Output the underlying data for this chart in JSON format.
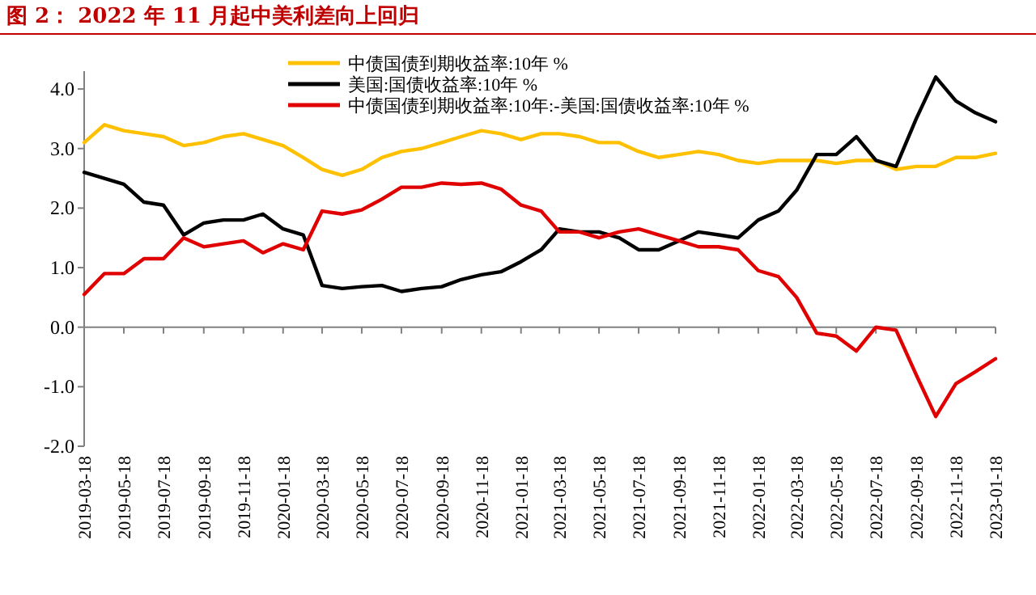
{
  "chart_data": {
    "type": "line",
    "title": "图 2：  2022 年 11 月起中美利差向上回归",
    "x": [
      "2019-03-18",
      "2019-04-18",
      "2019-05-18",
      "2019-06-18",
      "2019-07-18",
      "2019-08-18",
      "2019-09-18",
      "2019-10-18",
      "2019-11-18",
      "2019-12-18",
      "2020-01-18",
      "2020-02-18",
      "2020-03-18",
      "2020-04-18",
      "2020-05-18",
      "2020-06-18",
      "2020-07-18",
      "2020-08-18",
      "2020-09-18",
      "2020-10-18",
      "2020-11-18",
      "2020-12-18",
      "2021-01-18",
      "2021-02-18",
      "2021-03-18",
      "2021-04-18",
      "2021-05-18",
      "2021-06-18",
      "2021-07-18",
      "2021-08-18",
      "2021-09-18",
      "2021-10-18",
      "2021-11-18",
      "2021-12-18",
      "2022-01-18",
      "2022-02-18",
      "2022-03-18",
      "2022-04-18",
      "2022-05-18",
      "2022-06-18",
      "2022-07-18",
      "2022-08-18",
      "2022-09-18",
      "2022-10-18",
      "2022-11-18",
      "2022-12-18",
      "2023-01-18"
    ],
    "series": [
      {
        "name": "中债国债到期收益率:10年 %",
        "color": "#ffc000",
        "values": [
          3.1,
          3.4,
          3.3,
          3.25,
          3.2,
          3.05,
          3.1,
          3.2,
          3.25,
          3.15,
          3.05,
          2.85,
          2.65,
          2.55,
          2.65,
          2.85,
          2.95,
          3.0,
          3.1,
          3.2,
          3.3,
          3.25,
          3.15,
          3.25,
          3.25,
          3.2,
          3.1,
          3.1,
          2.95,
          2.85,
          2.9,
          2.95,
          2.9,
          2.8,
          2.75,
          2.8,
          2.8,
          2.8,
          2.75,
          2.8,
          2.8,
          2.65,
          2.7,
          2.7,
          2.85,
          2.85,
          2.92
        ]
      },
      {
        "name": "美国:国债收益率:10年 %",
        "color": "#000000",
        "values": [
          2.6,
          2.5,
          2.4,
          2.1,
          2.05,
          1.55,
          1.75,
          1.8,
          1.8,
          1.9,
          1.65,
          1.55,
          0.7,
          0.65,
          0.68,
          0.7,
          0.6,
          0.65,
          0.68,
          0.8,
          0.88,
          0.93,
          1.1,
          1.3,
          1.65,
          1.6,
          1.6,
          1.5,
          1.3,
          1.3,
          1.45,
          1.6,
          1.55,
          1.5,
          1.8,
          1.95,
          2.3,
          2.9,
          2.9,
          3.2,
          2.8,
          2.7,
          3.5,
          4.2,
          3.8,
          3.6,
          3.45
        ]
      },
      {
        "name": "中债国债到期收益率:10年:-美国:国债收益率:10年 %",
        "color": "#e00000",
        "values": [
          0.55,
          0.9,
          0.9,
          1.15,
          1.15,
          1.5,
          1.35,
          1.4,
          1.45,
          1.25,
          1.4,
          1.3,
          1.95,
          1.9,
          1.97,
          2.15,
          2.35,
          2.35,
          2.42,
          2.4,
          2.42,
          2.32,
          2.05,
          1.95,
          1.6,
          1.6,
          1.5,
          1.6,
          1.65,
          1.55,
          1.45,
          1.35,
          1.35,
          1.3,
          0.95,
          0.85,
          0.5,
          -0.1,
          -0.15,
          -0.4,
          0.0,
          -0.05,
          -0.8,
          -1.5,
          -0.95,
          -0.75,
          -0.53
        ]
      }
    ],
    "xlim": [
      "2019-03-18",
      "2023-01-18"
    ],
    "xticks": [
      "2019-03-18",
      "2019-05-18",
      "2019-07-18",
      "2019-09-18",
      "2019-11-18",
      "2020-01-18",
      "2020-03-18",
      "2020-05-18",
      "2020-07-18",
      "2020-09-18",
      "2020-11-18",
      "2021-01-18",
      "2021-03-18",
      "2021-05-18",
      "2021-07-18",
      "2021-09-18",
      "2021-11-18",
      "2022-01-18",
      "2022-03-18",
      "2022-05-18",
      "2022-07-18",
      "2022-09-18",
      "2022-11-18",
      "2023-01-18"
    ],
    "ylim": [
      -2,
      4.3
    ],
    "yticks": [
      {
        "value": -2,
        "label": "-2.0"
      },
      {
        "value": -1,
        "label": "-1.0"
      },
      {
        "value": 0,
        "label": "0.0"
      },
      {
        "value": 1,
        "label": "1.0"
      },
      {
        "value": 2,
        "label": "2.0"
      },
      {
        "value": 3,
        "label": "3.0"
      },
      {
        "value": 4,
        "label": "4.0"
      }
    ],
    "legend": "top",
    "marker": "none",
    "line_style": "solid"
  }
}
